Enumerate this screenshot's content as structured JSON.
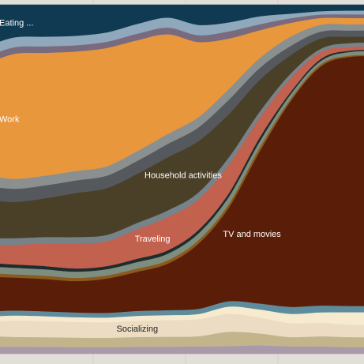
{
  "chart_data": {
    "type": "area",
    "subtype": "streamgraph (stacked area, normalized to 100%)",
    "x_domain": [
      0,
      24
    ],
    "y_domain": [
      0,
      100
    ],
    "grid": false,
    "background_color": "#e2dfd8",
    "gridline_color": "#d3d0c9",
    "x": [
      0,
      2,
      4,
      6,
      8,
      10,
      12,
      14,
      16,
      18,
      20,
      22,
      24
    ],
    "series": [
      {
        "name": "Eating ...",
        "color": "#0f3a52",
        "label_color": "#ffffff",
        "label_at_x": 1.0,
        "values": [
          12,
          10,
          10,
          10,
          9,
          6,
          4,
          6,
          5,
          3,
          2,
          1,
          0.5
        ]
      },
      {
        "name": "",
        "color": "#8fa8bb",
        "values": [
          3,
          3,
          3,
          3,
          3,
          3,
          3,
          3,
          2.5,
          2,
          1,
          0.5,
          0.3
        ]
      },
      {
        "name": "",
        "color": "#7a6a7e",
        "values": [
          2,
          2,
          2,
          2,
          2,
          2,
          2,
          2,
          2,
          1.5,
          1,
          0.5,
          0.3
        ]
      },
      {
        "name": "Work",
        "color": "#e8973d",
        "label_color": "#ffffff",
        "label_at_x": 0.2,
        "values": [
          32,
          38,
          38,
          38,
          38,
          34,
          30,
          22,
          14,
          7,
          3,
          1,
          0.5
        ]
      },
      {
        "name": "",
        "color": "#8a8f90",
        "values": [
          3,
          3,
          3,
          3,
          3,
          3,
          3,
          3,
          3,
          2.5,
          2,
          1,
          0.5
        ]
      },
      {
        "name": "",
        "color": "#55595d",
        "values": [
          4,
          4,
          4,
          4,
          4,
          4,
          4,
          4,
          4,
          3,
          2,
          1,
          0.5
        ]
      },
      {
        "name": "Household activities",
        "color": "#4a4028",
        "label_color": "#ffffff",
        "label_at_x": 13.0,
        "values": [
          11,
          11,
          12,
          14,
          15,
          15,
          16,
          15,
          12,
          8,
          4,
          1.5,
          0.5
        ]
      },
      {
        "name": "",
        "color": "#77838a",
        "values": [
          2,
          2,
          2,
          2,
          2,
          2,
          2,
          2,
          2,
          1.5,
          1,
          0.5,
          0.3
        ]
      },
      {
        "name": "Traveling",
        "color": "#c3614f",
        "label_color": "#ffffff",
        "label_at_x": 11.0,
        "values": [
          5,
          6,
          7,
          8,
          8,
          9,
          10,
          9,
          8,
          5,
          3,
          1,
          0.3
        ]
      },
      {
        "name": "",
        "color": "#1e2c2e",
        "values": [
          1,
          1,
          1,
          1,
          1,
          1,
          1,
          1,
          1,
          1,
          0.5,
          0.3,
          0.1
        ]
      },
      {
        "name": "",
        "color": "#7d8e7e",
        "values": [
          2,
          2,
          2,
          2,
          2,
          2,
          2,
          2,
          2,
          1.5,
          1,
          0.5,
          0.3
        ]
      },
      {
        "name": "",
        "color": "#8b5a1e",
        "values": [
          1,
          1,
          1,
          1,
          1,
          1,
          1,
          1,
          1,
          1,
          0.5,
          0.3,
          0.1
        ]
      },
      {
        "name": "TV and movies",
        "color": "#5a1e08",
        "label_color": "#ffffff",
        "label_at_x": 17.5,
        "values": [
          10,
          10,
          10,
          10,
          11,
          12,
          14,
          19,
          26,
          38,
          44,
          35,
          20
        ]
      },
      {
        "name": "",
        "color": "#5f8c9c",
        "values": [
          1.5,
          1.5,
          1.5,
          1.5,
          1.5,
          1.5,
          1.5,
          1.5,
          1.5,
          1.5,
          1.5,
          1,
          0.5
        ]
      },
      {
        "name": "",
        "color": "#f6ebcf",
        "values": [
          1.5,
          1.5,
          1.5,
          1.5,
          1.5,
          1.5,
          1.5,
          1.5,
          2,
          2,
          2,
          1.5,
          1
        ]
      },
      {
        "name": "Socializing",
        "color": "#ecdcc4",
        "label_color": "#222222",
        "label_at_x": 10.0,
        "values": [
          4,
          5,
          5,
          5,
          5,
          5,
          5,
          5,
          5,
          4,
          3,
          2,
          1
        ]
      },
      {
        "name": "",
        "color": "#c2b58c",
        "values": [
          3,
          3,
          3,
          3,
          3,
          3,
          3,
          3,
          4,
          3,
          2,
          1.5,
          0.8
        ]
      },
      {
        "name": "",
        "color": "#a99aaa",
        "values": [
          2,
          2,
          2,
          2,
          2,
          2,
          2,
          2,
          2,
          2,
          1.5,
          1,
          0.5
        ]
      }
    ]
  }
}
